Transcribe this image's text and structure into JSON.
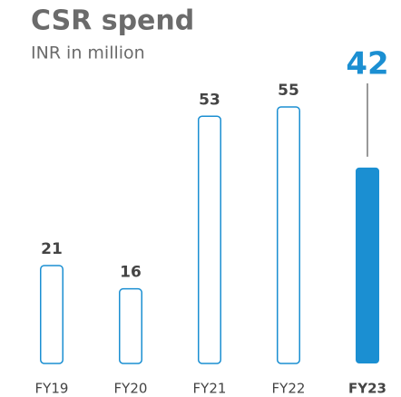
{
  "chart_data": {
    "type": "bar",
    "title": "CSR spend",
    "subtitle": "INR in million",
    "categories": [
      "FY19",
      "FY20",
      "FY21",
      "FY22",
      "FY23"
    ],
    "values": [
      21,
      16,
      53,
      55,
      42
    ],
    "color": "#1b8fd2",
    "highlight": "FY23"
  }
}
